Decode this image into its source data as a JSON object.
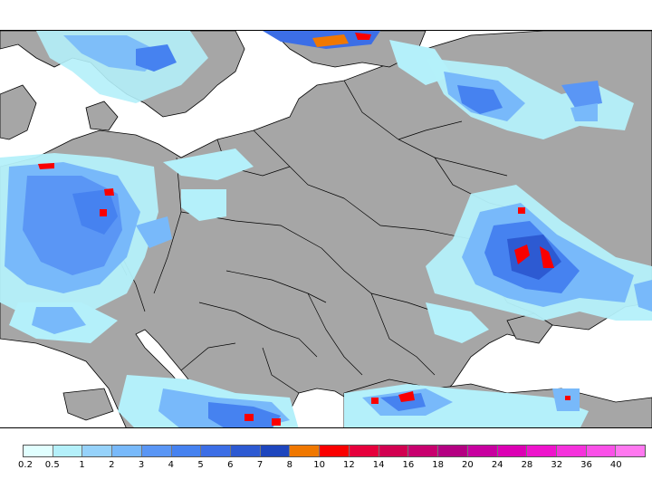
{
  "colors": {
    "land": "#a6a6a6",
    "sea": "#ffffff",
    "border": "#000000"
  },
  "legend": {
    "labels": [
      "0.2",
      "0.5",
      "1",
      "2",
      "3",
      "4",
      "5",
      "6",
      "7",
      "8",
      "10",
      "12",
      "14",
      "16",
      "18",
      "20",
      "24",
      "28",
      "32",
      "36",
      "40"
    ],
    "colors": [
      "#e1ffff",
      "#b4f0fa",
      "#96d2fa",
      "#78b9fa",
      "#5a96f5",
      "#4682f0",
      "#3c6ee6",
      "#2d5ad2",
      "#1e46be",
      "#f07800",
      "#fa0000",
      "#e6003c",
      "#d20050",
      "#c8006e",
      "#b40082",
      "#c800a0",
      "#dc00b4",
      "#ee14cc",
      "#f532dc",
      "#fa50e8",
      "#ff78f0"
    ]
  }
}
